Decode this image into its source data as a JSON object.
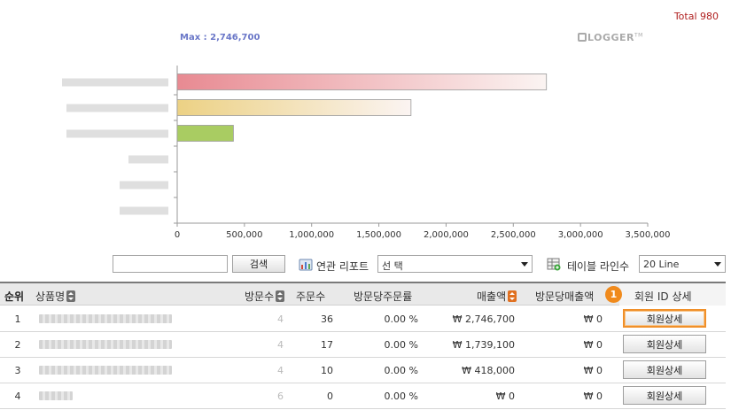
{
  "header": {
    "total_text": "Total 980",
    "max_text": "Max : 2,746,700",
    "logo_text": "LOGGER",
    "logo_mark": "TM"
  },
  "chart_data": {
    "type": "bar",
    "orientation": "horizontal",
    "categories": [
      "",
      "",
      "",
      "",
      "",
      ""
    ],
    "values": [
      2746700,
      1739100,
      418000,
      0,
      0,
      0
    ],
    "xlim": [
      0,
      3500000
    ],
    "xticks": [
      "0",
      "500,000",
      "1,000,000",
      "1,500,000",
      "2,000,000",
      "2,500,000",
      "3,000,000",
      "3,500,000"
    ],
    "colors": [
      "#e88a92",
      "#ecd184",
      "#a9cc62"
    ],
    "title": "",
    "xlabel": "",
    "ylabel": ""
  },
  "controls": {
    "search_value": "",
    "search_button": "검색",
    "report_label": "연관 리포트",
    "report_select": "선 택",
    "table_lines_label": "테이블 라인수",
    "table_lines_select": "20 Line"
  },
  "table": {
    "columns": {
      "rank": "순위",
      "product": "상품명",
      "visits": "방문수",
      "orders": "주문수",
      "order_rate": "방문당주문률",
      "sales": "매출액",
      "sales_per_visit": "방문당매출액",
      "member_detail": "회원 ID 상세"
    },
    "badge": "1",
    "detail_button": "회원상세",
    "rows": [
      {
        "rank": "1",
        "visits": "4",
        "orders": "36",
        "order_rate": "0.00 %",
        "sales": "₩ 2,746,700",
        "sales_per_visit": "₩ 0"
      },
      {
        "rank": "2",
        "visits": "4",
        "orders": "17",
        "order_rate": "0.00 %",
        "sales": "₩ 1,739,100",
        "sales_per_visit": "₩ 0"
      },
      {
        "rank": "3",
        "visits": "4",
        "orders": "10",
        "order_rate": "0.00 %",
        "sales": "₩ 418,000",
        "sales_per_visit": "₩ 0"
      },
      {
        "rank": "4",
        "visits": "6",
        "orders": "0",
        "order_rate": "0.00 %",
        "sales": "₩ 0",
        "sales_per_visit": "₩ 0"
      }
    ]
  }
}
